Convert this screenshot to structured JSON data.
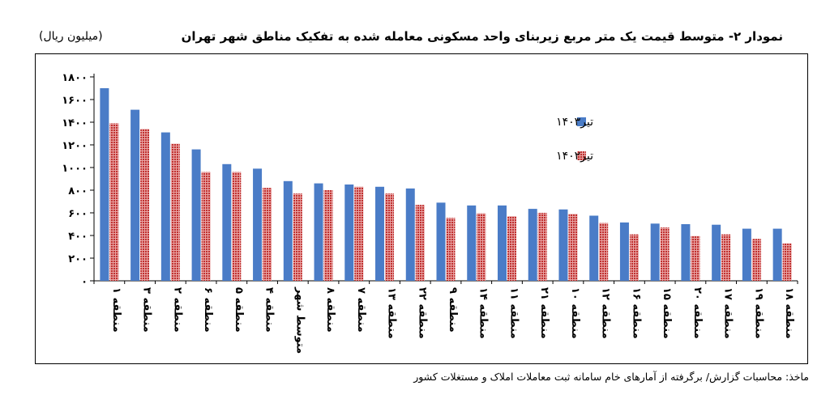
{
  "title": "نمودار ۲- متوسط قیمت یک متر مربع زیربنای واحد مسکونی معامله شده به تفکیک مناطق شهر تهران",
  "unit": "(میلیون ریال)",
  "source": "ماخذ: محاسبات گزارش/ برگرفته از آمارهای خام سامانه ثبت معاملات املاک و مستغلات کشور",
  "colors": {
    "series_1403": "#4a7cc7",
    "series_1402": "#c0302f"
  },
  "chart_data": {
    "type": "bar",
    "ylim": [
      0,
      1800
    ],
    "yticks": [
      0,
      200,
      400,
      600,
      800,
      1000,
      1200,
      1400,
      1600,
      1800
    ],
    "ytick_labels": [
      "۰",
      "۲۰۰",
      "۴۰۰",
      "۶۰۰",
      "۸۰۰",
      "۱۰۰۰",
      "۱۲۰۰",
      "۱۴۰۰",
      "۱۶۰۰",
      "۱۸۰۰"
    ],
    "legend_position": "top-right",
    "grid": false,
    "categories": [
      "منطقه ۱",
      "منطقه ۳",
      "منطقه ۲",
      "منطقه ۶",
      "منطقه ۵",
      "منطقه ۴",
      "متوسط شهر",
      "منطقه ۸",
      "منطقه ۷",
      "منطقه ۱۳",
      "منطقه ۲۲",
      "منطقه ۹",
      "منطقه ۱۴",
      "منطقه ۱۱",
      "منطقه ۲۱",
      "منطقه ۱۰",
      "منطقه ۱۲",
      "منطقه ۱۶",
      "منطقه ۱۵",
      "منطقه ۲۰",
      "منطقه ۱۷",
      "منطقه ۱۹",
      "منطقه ۱۸"
    ],
    "series": [
      {
        "name": "تیر۱۴۰۳",
        "values": [
          1700,
          1510,
          1310,
          1160,
          1030,
          990,
          880,
          860,
          850,
          830,
          815,
          690,
          665,
          665,
          635,
          630,
          575,
          515,
          505,
          500,
          495,
          460,
          460
        ]
      },
      {
        "name": "تیر۱۴۰۲",
        "values": [
          1390,
          1340,
          1210,
          960,
          960,
          820,
          770,
          800,
          830,
          770,
          670,
          555,
          595,
          570,
          600,
          590,
          510,
          410,
          470,
          395,
          410,
          370,
          330
        ]
      }
    ]
  }
}
